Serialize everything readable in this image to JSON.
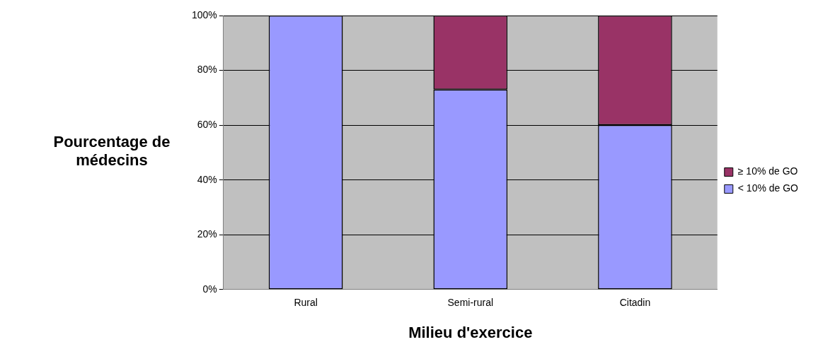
{
  "chart_data": {
    "type": "bar",
    "xlabel": "Milieu d'exercice",
    "ylabel": "Pourcentage de médecins",
    "categories": [
      "Rural",
      "Semi-rural",
      "Citadin"
    ],
    "stacked": true,
    "series": [
      {
        "name": "< 10% de GO",
        "color": "#9999ff",
        "values": [
          100,
          73,
          60
        ]
      },
      {
        "name": "≥ 10% de GO",
        "color": "#993366",
        "values": [
          0,
          27,
          40
        ]
      }
    ],
    "ylim": [
      0,
      100
    ],
    "yticks": [
      {
        "value": 0,
        "label": "0%"
      },
      {
        "value": 20,
        "label": "20%"
      },
      {
        "value": 40,
        "label": "40%"
      },
      {
        "value": 60,
        "label": "60%"
      },
      {
        "value": 80,
        "label": "80%"
      },
      {
        "value": 100,
        "label": "100%"
      }
    ],
    "grid": "y",
    "legend": "right"
  }
}
